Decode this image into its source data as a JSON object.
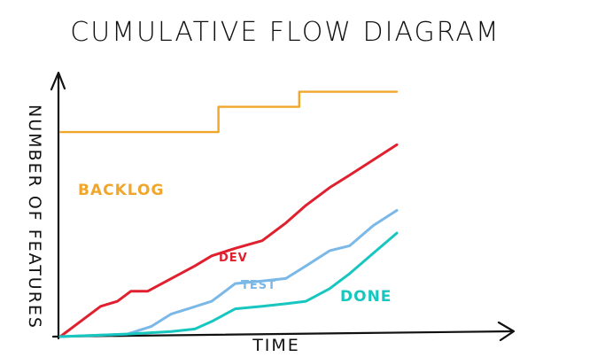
{
  "chart_data": {
    "type": "line",
    "title": "CUMULATIVE FLOW DIAGRAM",
    "xlabel": "TIME",
    "ylabel": "NUMBER OF FEATURES",
    "grid": false,
    "legend": "inline",
    "xlim": [
      0,
      100
    ],
    "ylim": [
      0,
      100
    ],
    "series": [
      {
        "name": "BACKLOG",
        "color": "#f0a62a",
        "x": [
          0,
          47,
          47,
          71,
          71,
          100
        ],
        "y": [
          81,
          81,
          91,
          91,
          97,
          97
        ]
      },
      {
        "name": "DEV",
        "color": "#e0202e",
        "x": [
          0,
          7,
          12,
          17,
          21,
          26,
          33,
          40,
          45,
          52,
          60,
          67,
          73,
          80,
          86,
          93,
          100
        ],
        "y": [
          0,
          7,
          12,
          14,
          18,
          18,
          23,
          28,
          32,
          35,
          38,
          45,
          52,
          59,
          64,
          70,
          76
        ]
      },
      {
        "name": "TEST",
        "color": "#7ab8e8",
        "x": [
          0,
          20,
          27,
          33,
          38,
          45,
          52,
          60,
          67,
          73,
          80,
          86,
          93,
          100
        ],
        "y": [
          0,
          1,
          4,
          9,
          11,
          14,
          21,
          22,
          23,
          28,
          34,
          36,
          44,
          50
        ]
      },
      {
        "name": "DONE",
        "color": "#18c6c0",
        "x": [
          0,
          20,
          33,
          40,
          45,
          52,
          60,
          67,
          73,
          80,
          86,
          93,
          100
        ],
        "y": [
          0,
          1,
          2,
          3,
          6,
          11,
          12,
          13,
          14,
          19,
          25,
          33,
          41
        ]
      }
    ]
  }
}
